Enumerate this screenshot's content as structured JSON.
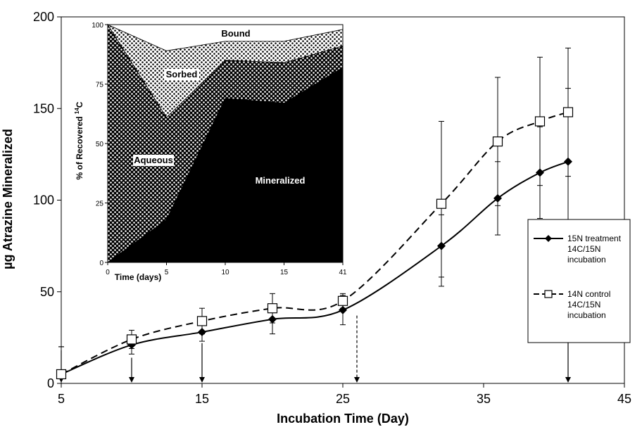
{
  "chart_data": [
    {
      "type": "line",
      "xlabel": "Incubation Time (Day)",
      "ylabel": "µg Atrazine Mineralized",
      "xlim": [
        5,
        45
      ],
      "ylim": [
        0,
        200
      ],
      "x_ticks": [
        "5",
        "15",
        "25",
        "35",
        "45"
      ],
      "y_ticks": [
        "0",
        "50",
        "100",
        "150",
        "200"
      ],
      "grid": false,
      "legend_position": "right",
      "series": [
        {
          "name_lines": [
            "15N treatment",
            "14C/15N",
            "incubation"
          ],
          "marker": "filled-diamond",
          "line": "solid",
          "color": "#000000",
          "x": [
            5,
            10,
            15,
            20,
            25,
            32,
            36,
            39,
            41
          ],
          "y": [
            5,
            21,
            28,
            35,
            40,
            75,
            101,
            115,
            121
          ],
          "err": [
            15,
            5,
            5,
            8,
            8,
            17,
            20,
            25,
            40
          ]
        },
        {
          "name_lines": [
            "14N control",
            "14C/15N",
            "incubation"
          ],
          "marker": "open-square",
          "line": "dashed",
          "color": "#000000",
          "x": [
            5,
            10,
            15,
            20,
            25,
            32,
            36,
            39,
            41
          ],
          "y": [
            5,
            24,
            34,
            41,
            45,
            98,
            132,
            143,
            148
          ],
          "err": [
            15,
            5,
            7,
            8,
            4,
            45,
            35,
            35,
            35
          ]
        }
      ],
      "arrows": [
        {
          "x": 5,
          "from": 18,
          "style": "solid"
        },
        {
          "x": 10,
          "from": 14,
          "style": "solid"
        },
        {
          "x": 15,
          "from": 22,
          "style": "solid"
        },
        {
          "x": 26,
          "from": 37,
          "style": "dashed"
        },
        {
          "x": 41,
          "from": 32,
          "style": "solid"
        }
      ]
    },
    {
      "type": "area",
      "stacked": true,
      "xlabel": "Time (days)",
      "ylabel": "% of Recovered 14C",
      "ylabel_parts": [
        "% of Recovered ",
        "14",
        "C"
      ],
      "ylim": [
        0,
        100
      ],
      "categories": [
        "0",
        "5",
        "10",
        "15",
        "41"
      ],
      "x_ticks": [
        "0",
        "5",
        "10",
        "15",
        "41"
      ],
      "y_ticks": [
        "0",
        "25",
        "50",
        "75",
        "100"
      ],
      "series": [
        {
          "name": "Mineralized",
          "values": [
            0,
            18,
            69,
            67,
            82
          ],
          "fill": "#000000"
        },
        {
          "name": "Aqueous",
          "values": [
            100,
            43,
            16,
            17,
            9
          ],
          "fill": "dense-dots"
        },
        {
          "name": "Sorbed",
          "values": [
            0,
            28,
            8,
            9,
            7
          ],
          "fill": "light-dots"
        },
        {
          "name": "Bound",
          "values": [
            0,
            11,
            7,
            7,
            2
          ],
          "fill": "#ffffff"
        }
      ]
    }
  ]
}
